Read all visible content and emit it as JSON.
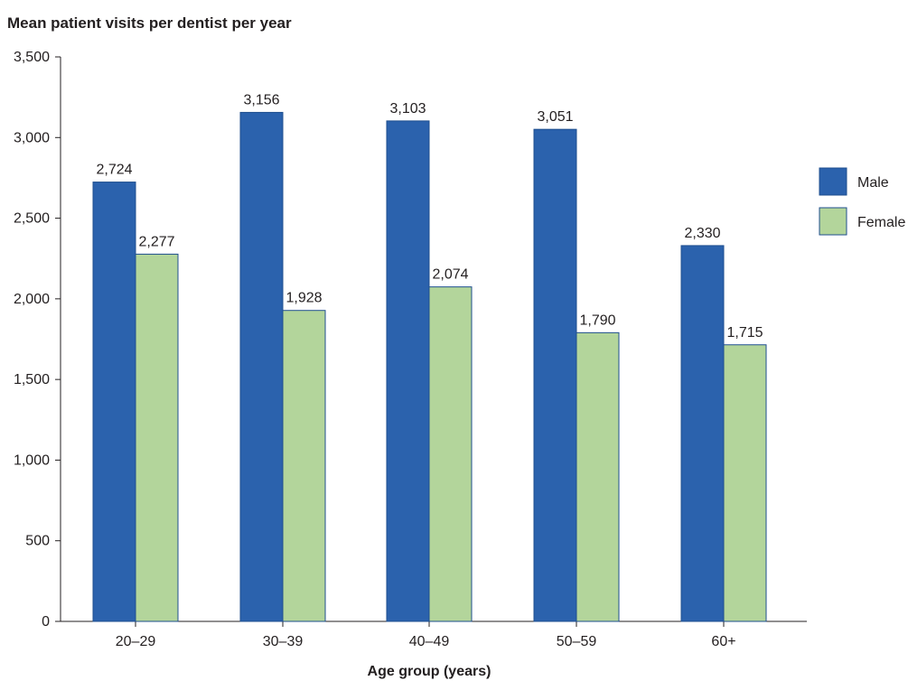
{
  "chart_data": {
    "type": "bar",
    "title": "Mean patient visits per dentist per year",
    "xlabel": "Age group (years)",
    "ylabel": "",
    "categories": [
      "20–29",
      "30–39",
      "40–49",
      "50–59",
      "60+"
    ],
    "series": [
      {
        "name": "Male",
        "values": [
          2724,
          3156,
          3103,
          3051,
          2330
        ],
        "color": "#2b62ad"
      },
      {
        "name": "Female",
        "values": [
          2277,
          1928,
          2074,
          1790,
          1715
        ],
        "color": "#b3d59b"
      }
    ],
    "data_labels": [
      [
        "2,724",
        "3,156",
        "3,103",
        "3,051",
        "2,330"
      ],
      [
        "2,277",
        "1,928",
        "2,074",
        "1,790",
        "1,715"
      ]
    ],
    "ylim": [
      0,
      3500
    ],
    "yticks": [
      0,
      500,
      1000,
      1500,
      2000,
      2500,
      3000,
      3500
    ],
    "ytick_labels": [
      "0",
      "500",
      "1,000",
      "1,500",
      "2,000",
      "2,500",
      "3,000",
      "3,500"
    ],
    "grid": false,
    "legend_position": "right",
    "bar_edge_color": "#1f4f8f"
  }
}
